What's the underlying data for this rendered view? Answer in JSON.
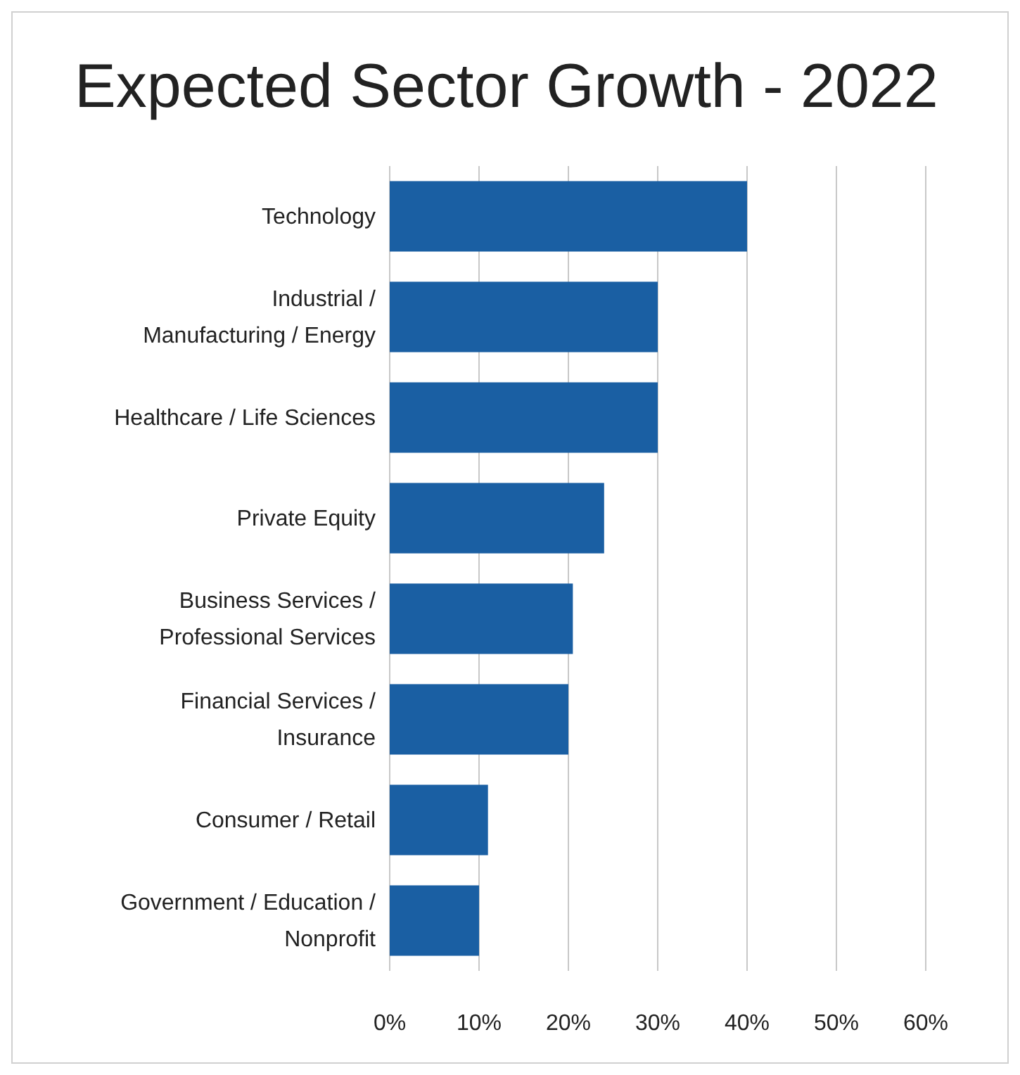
{
  "chart_data": {
    "type": "bar",
    "orientation": "horizontal",
    "title": "Expected Sector Growth - 2022",
    "categories": [
      "Technology",
      "Industrial / Manufacturing / Energy",
      "Healthcare / Life Sciences",
      "Private Equity",
      "Business Services / Professional Services",
      "Financial Services / Insurance",
      "Consumer / Retail",
      "Government / Education / Nonprofit"
    ],
    "values": [
      40,
      30,
      30,
      24,
      20.5,
      20,
      11,
      10
    ],
    "color": "#1a5fa3",
    "xlim": [
      0,
      60
    ],
    "xticks": [
      {
        "value": 0,
        "label": "0%"
      },
      {
        "value": 10,
        "label": "10%"
      },
      {
        "value": 20,
        "label": "20%"
      },
      {
        "value": 30,
        "label": "30%"
      },
      {
        "value": 40,
        "label": "40%"
      },
      {
        "value": 50,
        "label": "50%"
      },
      {
        "value": 60,
        "label": "60%"
      }
    ],
    "grid": "x"
  }
}
